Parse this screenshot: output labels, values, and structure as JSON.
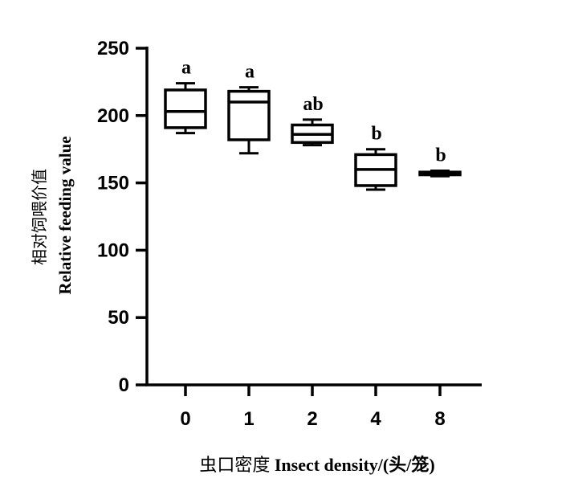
{
  "chart_data": {
    "type": "box",
    "title": "",
    "xlabel": "虫口密度 Insect density/(头/笼)",
    "xlabel_cn": "虫口密度",
    "xlabel_en": "Insect density/(头/笼)",
    "ylabel_cn": "相对饲喂价值",
    "ylabel_en": "Relative feeding value",
    "ylim": [
      0,
      250
    ],
    "yticks": [
      0,
      50,
      100,
      150,
      200,
      250
    ],
    "categories": [
      "0",
      "1",
      "2",
      "4",
      "8"
    ],
    "boxes": [
      {
        "category": "0",
        "min": 187,
        "q1": 191,
        "median": 203,
        "q3": 219,
        "max": 224,
        "significance": "a"
      },
      {
        "category": "1",
        "min": 172,
        "q1": 182,
        "median": 210,
        "q3": 218,
        "max": 221,
        "significance": "a"
      },
      {
        "category": "2",
        "min": 178,
        "q1": 180,
        "median": 186,
        "q3": 193,
        "max": 197,
        "significance": "ab"
      },
      {
        "category": "4",
        "min": 145,
        "q1": 148,
        "median": 160,
        "q3": 171,
        "max": 175,
        "significance": "b"
      },
      {
        "category": "8",
        "min": 155,
        "q1": 156,
        "median": 157,
        "q3": 158,
        "max": 159,
        "significance": "b"
      }
    ],
    "grid": false,
    "legend": "none"
  }
}
